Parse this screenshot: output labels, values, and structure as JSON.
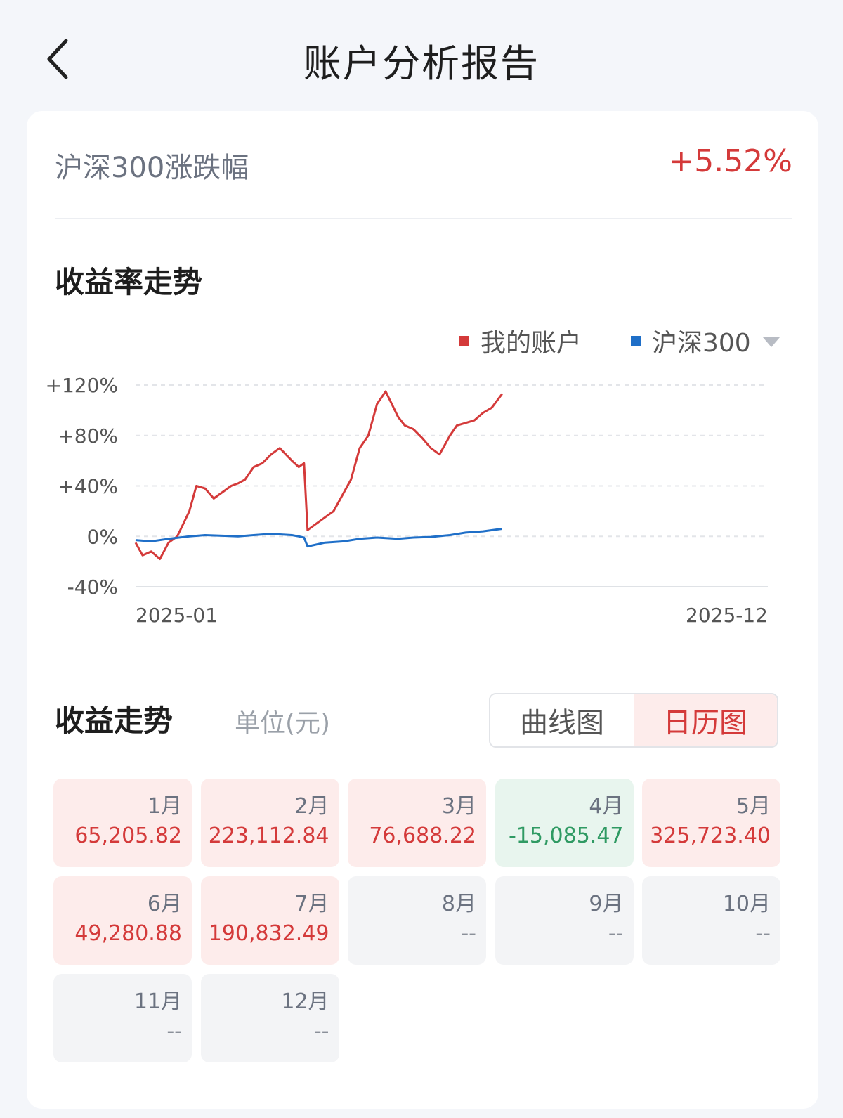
{
  "header": {
    "title": "账户分析报告",
    "back_icon": "chevron-left-icon"
  },
  "index_change": {
    "label": "沪深300涨跌幅",
    "value": "+5.52%"
  },
  "return_trend": {
    "title": "收益率走势"
  },
  "chart_data": {
    "type": "line",
    "title": "",
    "xlabel": "",
    "ylabel": "",
    "x_tick_labels": [
      "2025-01",
      "2025-12"
    ],
    "y_ticks": [
      120,
      80,
      40,
      0,
      -40
    ],
    "y_tick_labels": [
      "+120%",
      "+80%",
      "+40%",
      "0%",
      "-40%"
    ],
    "ylim": [
      -40,
      120
    ],
    "legend_position": "top-right",
    "grid": true,
    "series": [
      {
        "name": "我的账户",
        "color": "#d43a3a",
        "x": [
          "2025-01-01",
          "2025-01-05",
          "2025-01-10",
          "2025-01-15",
          "2025-01-20",
          "2025-01-25",
          "2025-02-01",
          "2025-02-05",
          "2025-02-10",
          "2025-02-15",
          "2025-02-20",
          "2025-02-25",
          "2025-03-01",
          "2025-03-05",
          "2025-03-10",
          "2025-03-15",
          "2025-03-20",
          "2025-03-25",
          "2025-04-01",
          "2025-04-05",
          "2025-04-08",
          "2025-04-10",
          "2025-04-15",
          "2025-04-20",
          "2025-04-25",
          "2025-05-01",
          "2025-05-05",
          "2025-05-10",
          "2025-05-15",
          "2025-05-20",
          "2025-05-25",
          "2025-06-01",
          "2025-06-05",
          "2025-06-10",
          "2025-06-15",
          "2025-06-20",
          "2025-06-25",
          "2025-07-01",
          "2025-07-05",
          "2025-07-10",
          "2025-07-15",
          "2025-07-20",
          "2025-07-25",
          "2025-07-31"
        ],
        "y": [
          -5,
          -15,
          -12,
          -18,
          -5,
          0,
          20,
          40,
          38,
          30,
          35,
          40,
          42,
          45,
          55,
          58,
          65,
          70,
          60,
          55,
          58,
          5,
          10,
          15,
          20,
          35,
          45,
          70,
          80,
          105,
          115,
          95,
          88,
          85,
          78,
          70,
          65,
          80,
          88,
          90,
          92,
          98,
          102,
          113
        ]
      },
      {
        "name": "沪深300",
        "color": "#1f6fc8",
        "x": [
          "2025-01-01",
          "2025-01-10",
          "2025-01-20",
          "2025-02-01",
          "2025-02-10",
          "2025-02-20",
          "2025-03-01",
          "2025-03-10",
          "2025-03-20",
          "2025-04-01",
          "2025-04-05",
          "2025-04-08",
          "2025-04-10",
          "2025-04-20",
          "2025-05-01",
          "2025-05-10",
          "2025-05-20",
          "2025-06-01",
          "2025-06-10",
          "2025-06-20",
          "2025-07-01",
          "2025-07-10",
          "2025-07-20",
          "2025-07-31"
        ],
        "y": [
          -3,
          -4,
          -2,
          0,
          1,
          0.5,
          0,
          1,
          2,
          1,
          0,
          -1,
          -8,
          -5,
          -4,
          -2,
          -1,
          -2,
          -1,
          -0.5,
          1,
          3,
          4,
          6
        ]
      }
    ]
  },
  "profit_trend": {
    "title": "收益走势",
    "unit": "单位(元)",
    "toggle": {
      "curve_label": "曲线图",
      "calendar_label": "日历图"
    }
  },
  "months": [
    {
      "label": "1月",
      "value": "65,205.82",
      "status": "pos"
    },
    {
      "label": "2月",
      "value": "223,112.84",
      "status": "pos"
    },
    {
      "label": "3月",
      "value": "76,688.22",
      "status": "pos"
    },
    {
      "label": "4月",
      "value": "-15,085.47",
      "status": "neg"
    },
    {
      "label": "5月",
      "value": "325,723.40",
      "status": "pos"
    },
    {
      "label": "6月",
      "value": "49,280.88",
      "status": "pos"
    },
    {
      "label": "7月",
      "value": "190,832.49",
      "status": "pos"
    },
    {
      "label": "8月",
      "value": "--",
      "status": "none"
    },
    {
      "label": "9月",
      "value": "--",
      "status": "none"
    },
    {
      "label": "10月",
      "value": "--",
      "status": "none"
    },
    {
      "label": "11月",
      "value": "--",
      "status": "none"
    },
    {
      "label": "12月",
      "value": "--",
      "status": "none"
    }
  ]
}
